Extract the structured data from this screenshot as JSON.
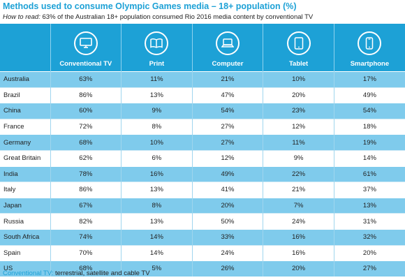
{
  "title": "Methods used to consume Olympic Games media – 18+ population (%)",
  "how_to_read": {
    "lead": "How to read:",
    "text": " 63% of the Australian 18+ population consumed Rio 2016 media content by conventional TV"
  },
  "footnote": {
    "key": "Conventional TV:",
    "text": " terrestrial, satellite and cable TV"
  },
  "colors": {
    "accent": "#1da1d6",
    "row_tint": "#7fcbec"
  },
  "chart_data": {
    "type": "table",
    "title": "Methods used to consume Olympic Games media – 18+ population (%)",
    "columns": [
      {
        "label": "Conventional TV",
        "icon": "tv-icon"
      },
      {
        "label": "Print",
        "icon": "book-icon"
      },
      {
        "label": "Computer",
        "icon": "laptop-icon"
      },
      {
        "label": "Tablet",
        "icon": "tablet-icon"
      },
      {
        "label": "Smartphone",
        "icon": "smartphone-icon"
      }
    ],
    "rows": [
      {
        "country": "Australia",
        "values": [
          "63%",
          "11%",
          "21%",
          "10%",
          "17%"
        ]
      },
      {
        "country": "Brazil",
        "values": [
          "86%",
          "13%",
          "47%",
          "20%",
          "49%"
        ]
      },
      {
        "country": "China",
        "values": [
          "60%",
          "9%",
          "54%",
          "23%",
          "54%"
        ]
      },
      {
        "country": "France",
        "values": [
          "72%",
          "8%",
          "27%",
          "12%",
          "18%"
        ]
      },
      {
        "country": "Germany",
        "values": [
          "68%",
          "10%",
          "27%",
          "11%",
          "19%"
        ]
      },
      {
        "country": "Great Britain",
        "values": [
          "62%",
          "6%",
          "12%",
          "9%",
          "14%"
        ]
      },
      {
        "country": "India",
        "values": [
          "78%",
          "16%",
          "49%",
          "22%",
          "61%"
        ]
      },
      {
        "country": "Italy",
        "values": [
          "86%",
          "13%",
          "41%",
          "21%",
          "37%"
        ]
      },
      {
        "country": "Japan",
        "values": [
          "67%",
          "8%",
          "20%",
          "7%",
          "13%"
        ]
      },
      {
        "country": "Russia",
        "values": [
          "82%",
          "13%",
          "50%",
          "24%",
          "31%"
        ]
      },
      {
        "country": "South Africa",
        "values": [
          "74%",
          "14%",
          "33%",
          "16%",
          "32%"
        ]
      },
      {
        "country": "Spain",
        "values": [
          "70%",
          "14%",
          "24%",
          "16%",
          "20%"
        ]
      },
      {
        "country": "US",
        "values": [
          "68%",
          "5%",
          "26%",
          "20%",
          "27%"
        ]
      }
    ]
  }
}
